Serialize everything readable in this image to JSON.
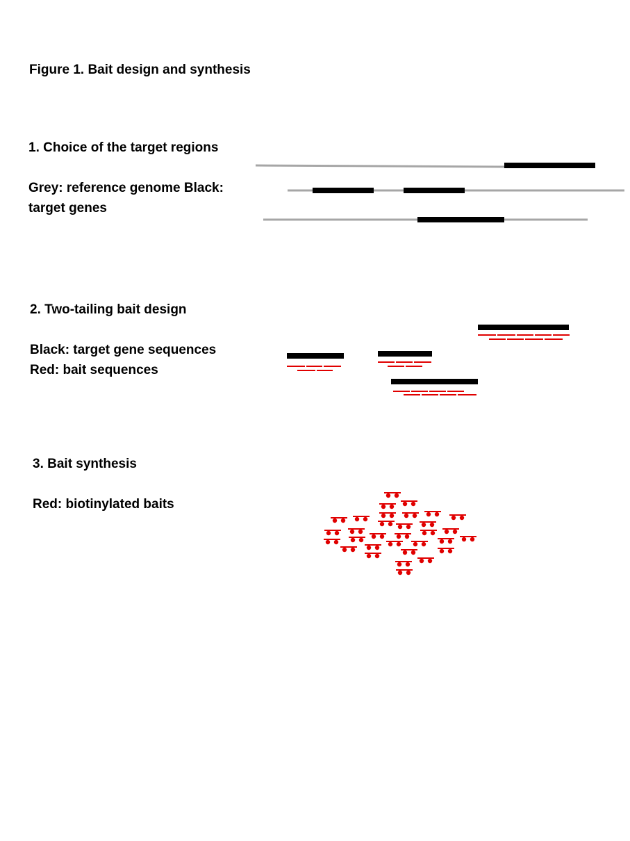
{
  "figure_title": "Figure 1. Bait design and synthesis",
  "sections": [
    {
      "heading": "1. Choice of the target regions",
      "legend_lines": [
        "Grey: reference genome Black:",
        "target genes"
      ],
      "colors": {
        "reference": "#a6a6a6",
        "target": "#000000"
      }
    },
    {
      "heading": "2. Two-tailing bait design",
      "legend_lines": [
        "Black: target gene sequences",
        "Red: bait sequences"
      ],
      "colors": {
        "target": "#000000",
        "bait": "#e00000"
      }
    },
    {
      "heading": "3. Bait synthesis",
      "legend_lines": [
        "Red: biotinylated baits"
      ],
      "colors": {
        "bait": "#e00000"
      }
    }
  ]
}
